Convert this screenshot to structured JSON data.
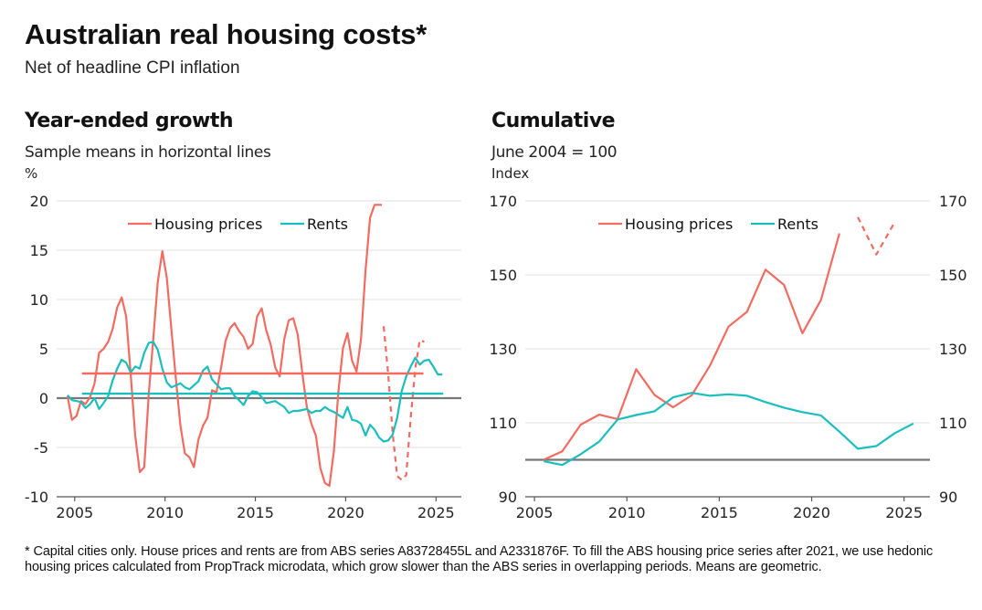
{
  "header": {
    "title": "Australian real housing costs*",
    "subtitle": "Net of headline CPI inflation"
  },
  "colors": {
    "housing": "#f26b61",
    "rents": "#1bbdbd",
    "baseline": "#777777",
    "grid": "#e6e6e6",
    "axis": "#555555"
  },
  "footnote": "* Capital cities only. House prices and rents are from ABS series A83728455L and A2331876F. To fill the ABS housing price series after 2021, we use hedonic housing prices calculated from PropTrack microdata, which grow slower than the ABS series in overlapping periods. Means are geometric.",
  "chart_data": [
    {
      "id": "growth",
      "type": "line",
      "title": "Year-ended growth",
      "subtitle": "Sample means in horizontal lines",
      "ylabel": "%",
      "xlabel": "",
      "xlim": [
        2004.0,
        2026.4
      ],
      "ylim": [
        -10,
        20
      ],
      "yticks": [
        20,
        15,
        10,
        5,
        0,
        -5,
        -10
      ],
      "ytick_labels": [
        "20",
        "15",
        "10",
        "5",
        "0",
        "-5",
        "-10"
      ],
      "xticks": [
        2005,
        2010,
        2015,
        2020,
        2025
      ],
      "xtick_labels": [
        "2005",
        "2010",
        "2015",
        "2020",
        "2025"
      ],
      "baseline": 0,
      "grid": true,
      "legend": {
        "position": "top-center",
        "entries": [
          "Housing prices",
          "Rents"
        ]
      },
      "series": [
        {
          "name": "Housing prices",
          "color_key": "housing",
          "style": "solid",
          "x": [
            2004.6,
            2004.85,
            2005.1,
            2005.35,
            2005.6,
            2005.85,
            2006.1,
            2006.35,
            2006.6,
            2006.85,
            2007.1,
            2007.35,
            2007.6,
            2007.85,
            2008.1,
            2008.35,
            2008.6,
            2008.85,
            2009.1,
            2009.35,
            2009.6,
            2009.85,
            2010.1,
            2010.35,
            2010.6,
            2010.85,
            2011.1,
            2011.35,
            2011.6,
            2011.85,
            2012.1,
            2012.35,
            2012.6,
            2012.85,
            2013.1,
            2013.35,
            2013.6,
            2013.85,
            2014.1,
            2014.35,
            2014.6,
            2014.85,
            2015.1,
            2015.35,
            2015.6,
            2015.85,
            2016.1,
            2016.35,
            2016.6,
            2016.85,
            2017.1,
            2017.35,
            2017.6,
            2017.85,
            2018.1,
            2018.35,
            2018.6,
            2018.85,
            2019.1,
            2019.35,
            2019.6,
            2019.85,
            2020.1,
            2020.35,
            2020.6,
            2020.85,
            2021.1,
            2021.35,
            2021.6,
            2021.85,
            2022.0
          ],
          "values": [
            0.2,
            -2.2,
            -1.8,
            -0.3,
            -0.6,
            0.1,
            1.5,
            4.6,
            5.0,
            5.7,
            7.0,
            9.2,
            10.2,
            8.3,
            2.4,
            -3.8,
            -7.5,
            -7.0,
            0.5,
            6.0,
            11.8,
            14.9,
            12.2,
            7.0,
            2.0,
            -2.8,
            -5.6,
            -6.0,
            -7.0,
            -4.2,
            -2.8,
            -2.0,
            0.8,
            0.6,
            3.1,
            5.8,
            7.1,
            7.6,
            6.8,
            6.2,
            5.0,
            5.5,
            8.3,
            9.1,
            6.9,
            5.4,
            3.1,
            2.2,
            6.0,
            7.9,
            8.1,
            6.4,
            2.5,
            -0.9,
            -2.6,
            -3.8,
            -7.1,
            -8.6,
            -8.9,
            -5.3,
            0.7,
            5.1,
            6.6,
            3.8,
            2.7,
            6.0,
            13.0,
            18.3,
            19.6,
            19.6,
            19.6
          ]
        },
        {
          "name": "Housing prices (PropTrack)",
          "color_key": "housing",
          "style": "dashed",
          "x": [
            2022.1,
            2022.35,
            2022.6,
            2022.85,
            2023.1,
            2023.35,
            2023.6,
            2023.85,
            2024.1,
            2024.35
          ],
          "values": [
            7.3,
            2.5,
            -3.5,
            -7.9,
            -8.3,
            -7.8,
            -2.0,
            3.0,
            5.9,
            5.7
          ]
        },
        {
          "name": "Rents",
          "color_key": "rents",
          "style": "solid",
          "x": [
            2004.6,
            2004.85,
            2005.1,
            2005.35,
            2005.6,
            2005.85,
            2006.1,
            2006.35,
            2006.6,
            2006.85,
            2007.1,
            2007.35,
            2007.6,
            2007.85,
            2008.1,
            2008.35,
            2008.6,
            2008.85,
            2009.1,
            2009.35,
            2009.6,
            2009.85,
            2010.1,
            2010.35,
            2010.6,
            2010.85,
            2011.1,
            2011.35,
            2011.6,
            2011.85,
            2012.1,
            2012.35,
            2012.6,
            2012.85,
            2013.1,
            2013.35,
            2013.6,
            2013.85,
            2014.1,
            2014.35,
            2014.6,
            2014.85,
            2015.1,
            2015.35,
            2015.6,
            2015.85,
            2016.1,
            2016.35,
            2016.6,
            2016.85,
            2017.1,
            2017.35,
            2017.6,
            2017.85,
            2018.1,
            2018.35,
            2018.6,
            2018.85,
            2019.1,
            2019.35,
            2019.6,
            2019.85,
            2020.1,
            2020.35,
            2020.6,
            2020.85,
            2021.1,
            2021.35,
            2021.6,
            2021.85,
            2022.1,
            2022.35,
            2022.6,
            2022.85,
            2023.1,
            2023.35,
            2023.6,
            2023.85,
            2024.1,
            2024.35,
            2024.6,
            2024.85,
            2025.1,
            2025.35
          ],
          "values": [
            0.3,
            -0.2,
            -0.3,
            -0.4,
            -1.0,
            -0.6,
            0.0,
            -1.1,
            -0.5,
            0.2,
            1.8,
            3.0,
            3.9,
            3.6,
            2.6,
            3.2,
            3.0,
            4.6,
            5.6,
            5.7,
            4.9,
            3.0,
            1.6,
            1.1,
            1.3,
            1.5,
            1.1,
            0.9,
            1.3,
            1.7,
            2.8,
            3.2,
            1.9,
            1.4,
            0.9,
            1.0,
            1.0,
            0.2,
            -0.2,
            -0.7,
            0.2,
            0.7,
            0.6,
            0.1,
            -0.5,
            -0.4,
            -0.3,
            -0.6,
            -0.9,
            -1.5,
            -1.3,
            -1.3,
            -1.2,
            -1.1,
            -1.5,
            -1.3,
            -1.3,
            -0.9,
            -1.2,
            -1.4,
            -1.7,
            -2.0,
            -0.9,
            -2.2,
            -2.3,
            -2.6,
            -3.8,
            -2.7,
            -3.2,
            -4.0,
            -4.4,
            -4.3,
            -3.7,
            -2.0,
            0.7,
            2.2,
            3.2,
            4.1,
            3.4,
            3.8,
            3.9,
            3.2,
            2.4,
            2.4
          ]
        },
        {
          "name": "Housing prices mean",
          "color_key": "housing",
          "style": "mean",
          "x": [
            2005.4,
            2024.3
          ],
          "values": [
            2.5,
            2.5
          ]
        },
        {
          "name": "Rents mean",
          "color_key": "rents",
          "style": "mean",
          "x": [
            2005.4,
            2025.4
          ],
          "values": [
            0.45,
            0.45
          ]
        }
      ]
    },
    {
      "id": "cumulative",
      "type": "line",
      "title": "Cumulative",
      "subtitle": "June 2004 = 100",
      "ylabel": "Index",
      "xlabel": "",
      "xlim": [
        2004.5,
        2026.4
      ],
      "ylim": [
        90,
        170
      ],
      "yticks": [
        170,
        150,
        130,
        110,
        90
      ],
      "ytick_labels": [
        "170",
        "150",
        "130",
        "110",
        "90"
      ],
      "xticks": [
        2005,
        2010,
        2015,
        2020,
        2025
      ],
      "xtick_labels": [
        "2005",
        "2010",
        "2015",
        "2020",
        "2025"
      ],
      "baseline": 100,
      "grid": true,
      "dual_y_axis_labels": true,
      "legend": {
        "position": "top-center",
        "entries": [
          "Housing prices",
          "Rents"
        ]
      },
      "series": [
        {
          "name": "Housing prices",
          "color_key": "housing",
          "style": "solid",
          "x": [
            2005.5,
            2006.5,
            2007.5,
            2008.5,
            2009.5,
            2010.5,
            2011.5,
            2012.5,
            2013.5,
            2014.5,
            2015.5,
            2016.5,
            2017.5,
            2018.5,
            2019.5,
            2020.5,
            2021.5
          ],
          "values": [
            100.0,
            102.3,
            109.5,
            112.2,
            111.0,
            124.5,
            117.5,
            114.2,
            117.4,
            125.5,
            136.0,
            140.0,
            151.4,
            147.3,
            134.2,
            143.2,
            161.2
          ]
        },
        {
          "name": "Housing prices (PropTrack)",
          "color_key": "housing",
          "style": "dashed",
          "x": [
            2022.5,
            2023.5,
            2024.5
          ],
          "values": [
            165.6,
            155.5,
            164.3
          ]
        },
        {
          "name": "Rents",
          "color_key": "rents",
          "style": "solid",
          "x": [
            2005.5,
            2006.5,
            2007.5,
            2008.5,
            2009.5,
            2010.5,
            2011.5,
            2012.5,
            2013.5,
            2014.5,
            2015.5,
            2016.5,
            2017.5,
            2018.5,
            2019.5,
            2020.5,
            2021.5,
            2022.5,
            2023.5,
            2024.5,
            2025.5
          ],
          "values": [
            99.6,
            98.6,
            101.5,
            104.9,
            110.9,
            112.1,
            113.1,
            116.9,
            118.1,
            117.3,
            117.7,
            117.3,
            115.6,
            114.1,
            112.9,
            112.0,
            107.6,
            103.0,
            103.7,
            107.2,
            109.8
          ]
        }
      ]
    }
  ]
}
